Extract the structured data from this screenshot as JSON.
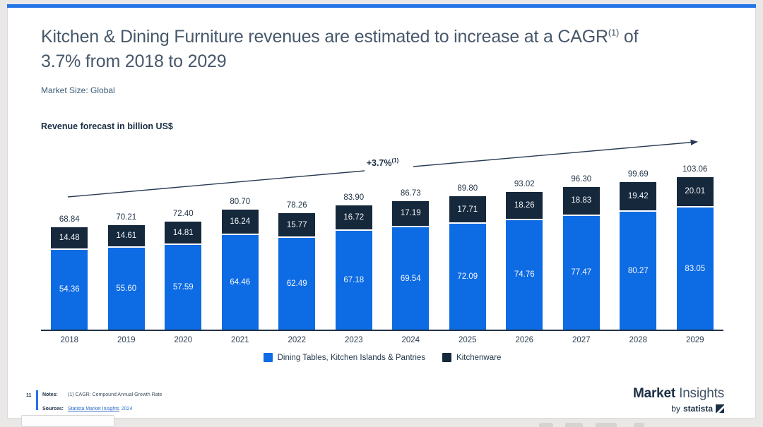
{
  "header": {
    "title_line1_pre": "Kitchen & Dining Furniture revenues are estimated to increase at a CAGR",
    "title_sup": "(1)",
    "title_line1_post": " of",
    "title_line2": "3.7% from 2018 to 2029",
    "subtitle": "Market Size: Global"
  },
  "chart_data": {
    "type": "bar",
    "stacked": true,
    "title": "Revenue forecast in billion US$",
    "categories": [
      "2018",
      "2019",
      "2020",
      "2021",
      "2022",
      "2023",
      "2024",
      "2025",
      "2026",
      "2027",
      "2028",
      "2029"
    ],
    "series": [
      {
        "name": "Dining Tables, Kitchen Islands & Pantries",
        "color": "#0d6be4",
        "values": [
          "54.36",
          "55.60",
          "57.59",
          "64.46",
          "62.49",
          "67.18",
          "69.54",
          "72.09",
          "74.76",
          "77.47",
          "80.27",
          "83.05"
        ]
      },
      {
        "name": "Kitchenware",
        "color": "#16283c",
        "values": [
          "14.48",
          "14.61",
          "14.81",
          "16.24",
          "15.77",
          "16.72",
          "17.19",
          "17.71",
          "18.26",
          "18.83",
          "19.42",
          "20.01"
        ]
      }
    ],
    "totals": [
      "68.84",
      "70.21",
      "72.40",
      "80.70",
      "78.26",
      "83.90",
      "86.73",
      "89.80",
      "93.02",
      "96.30",
      "99.69",
      "103.06"
    ],
    "growth_label": "+3.7%",
    "growth_sup": "(1)",
    "legend_position": "bottom",
    "ylim": [
      0,
      110
    ],
    "grid": false
  },
  "footer": {
    "page_number": "11",
    "notes_label": "Notes:",
    "notes_text": "(1) CAGR: Compound Annual Growth Rate",
    "sources_label": "Sources:",
    "source_link": "Statista Market Insights",
    "source_year": "2024",
    "brand_primary": "Market",
    "brand_secondary": " Insights",
    "brand_sub_by": "by",
    "brand_sub_name": "statista"
  },
  "colors": {
    "accent_blue": "#2273e8",
    "bar_blue": "#0d6be4",
    "bar_navy": "#16283c",
    "axis": "#22344a",
    "title_text": "#47586b",
    "link_blue": "#2e6bc6"
  }
}
